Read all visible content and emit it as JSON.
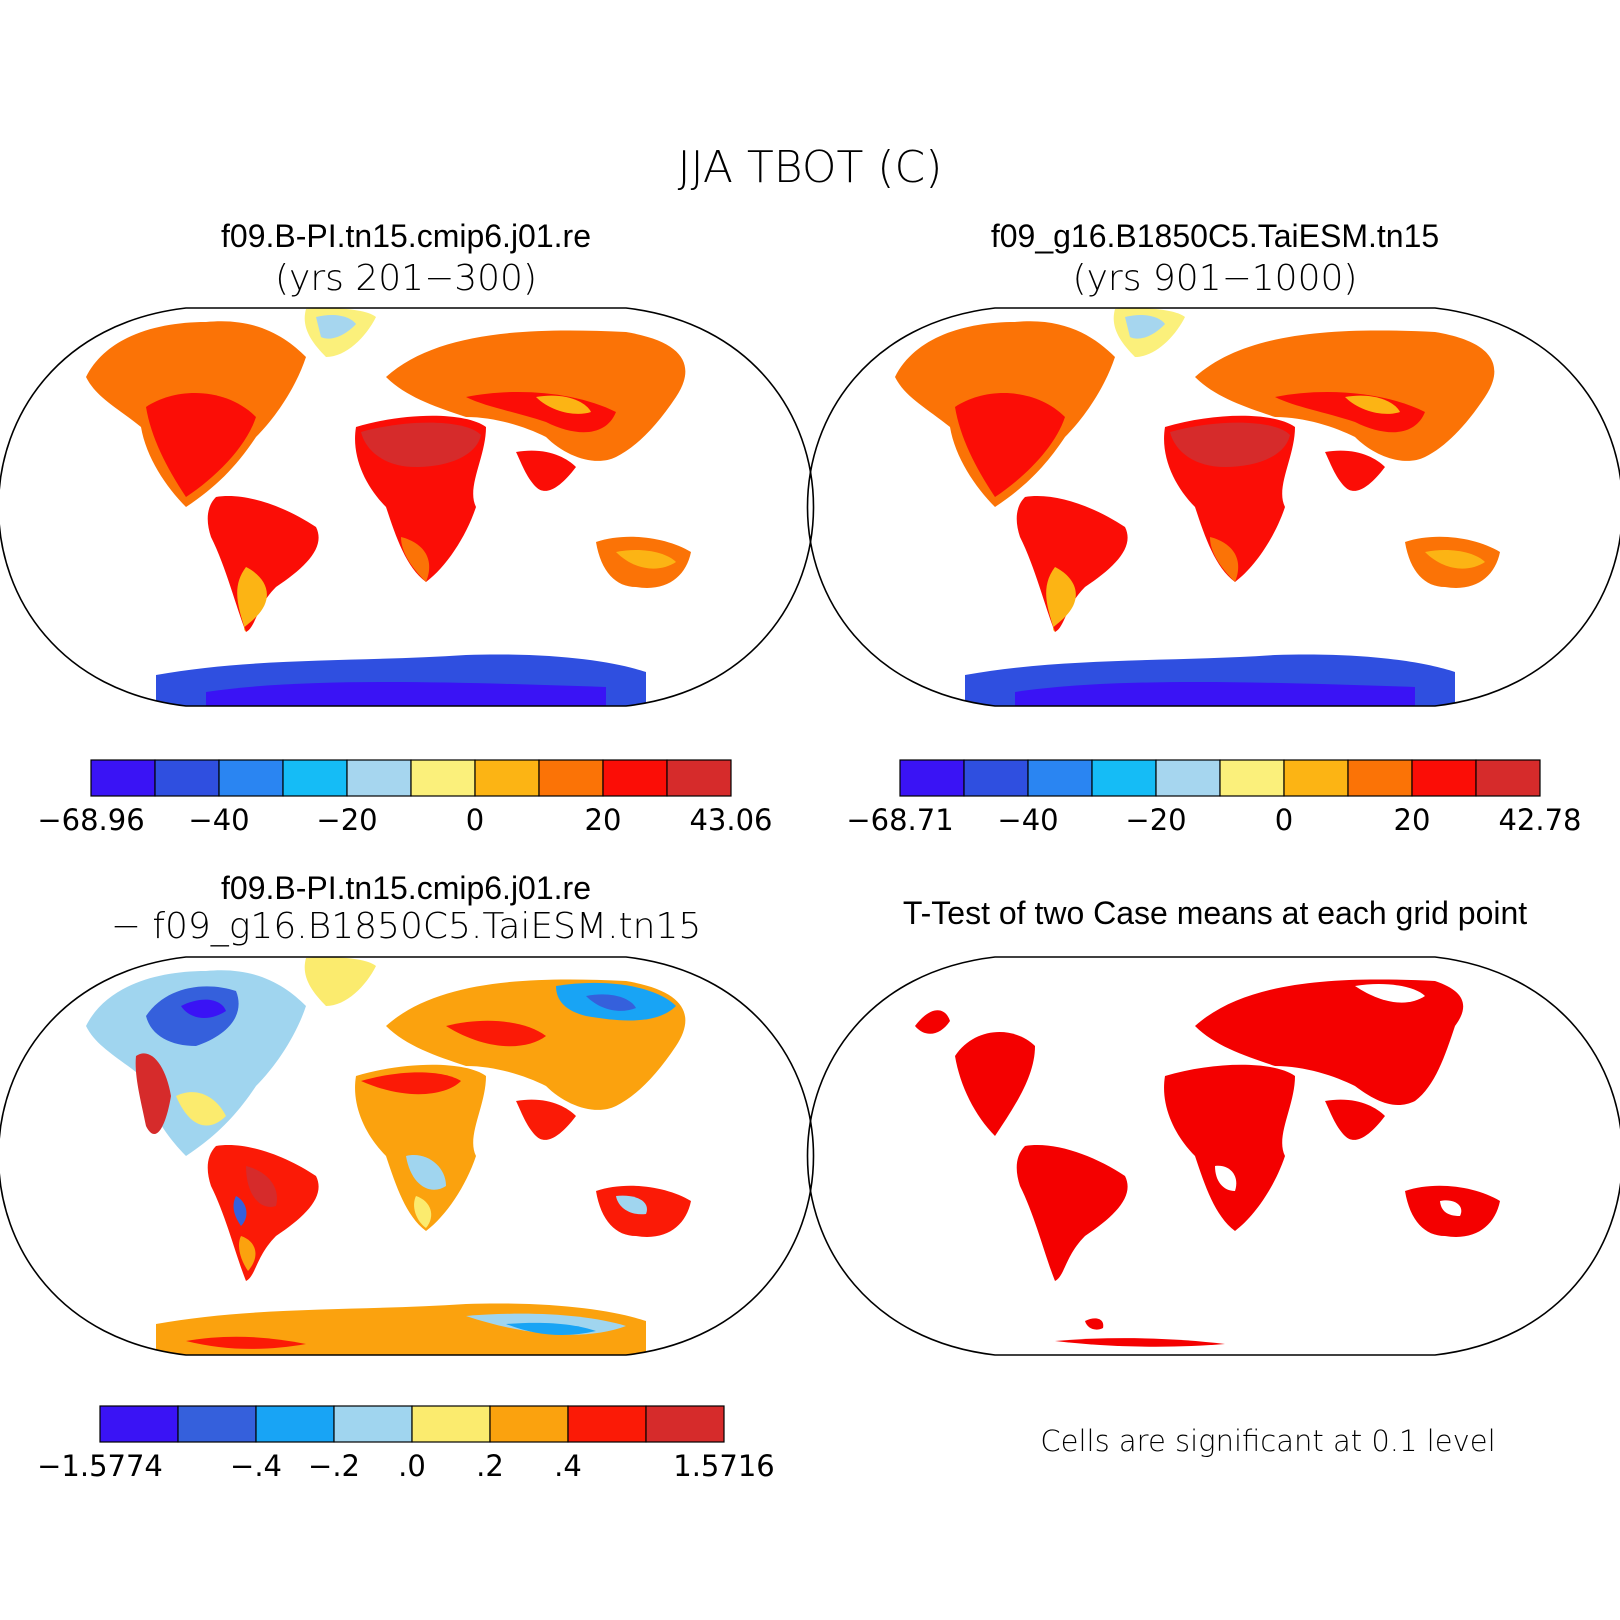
{
  "main_title": "JJA TBOT (C)",
  "panels": [
    {
      "title": "f09.B-PI.tn15.cmip6.j01.re",
      "subtitle": "(yrs 201−300)",
      "colorbar": {
        "colors": [
          "#3a13f5",
          "#2f4fe0",
          "#2a85f2",
          "#15bcf6",
          "#a6d6ef",
          "#fbf07b",
          "#fcb414",
          "#fb7306",
          "#fb0d06",
          "#d62b2b"
        ],
        "labels": [
          "−68.96",
          "−40",
          "−20",
          "0",
          "20",
          "43.06"
        ]
      }
    },
    {
      "title": "f09_g16.B1850C5.TaiESM.tn15",
      "subtitle": "(yrs 901−1000)",
      "colorbar": {
        "colors": [
          "#3a13f5",
          "#2f4fe0",
          "#2a85f2",
          "#15bcf6",
          "#a6d6ef",
          "#fbf07b",
          "#fcb414",
          "#fb7306",
          "#fb0d06",
          "#d62b2b"
        ],
        "labels": [
          "−68.71",
          "−40",
          "−20",
          "0",
          "20",
          "42.78"
        ]
      }
    },
    {
      "title": "f09.B-PI.tn15.cmip6.j01.re",
      "subtitle": "− f09_g16.B1850C5.TaiESM.tn15",
      "colorbar": {
        "colors": [
          "#3a13f5",
          "#3560dc",
          "#18a4f5",
          "#a0d5ef",
          "#fbeb6e",
          "#fba20e",
          "#fb1a06",
          "#d62b2b"
        ],
        "labels": [
          "−1.5774",
          "−.4",
          "−.2",
          ".0",
          ".2",
          ".4",
          "1.5716"
        ]
      }
    },
    {
      "title": "T-Test of two Case means at each grid point",
      "note": "Cells are significant at 0.1 level",
      "color": "#f40000"
    }
  ]
}
